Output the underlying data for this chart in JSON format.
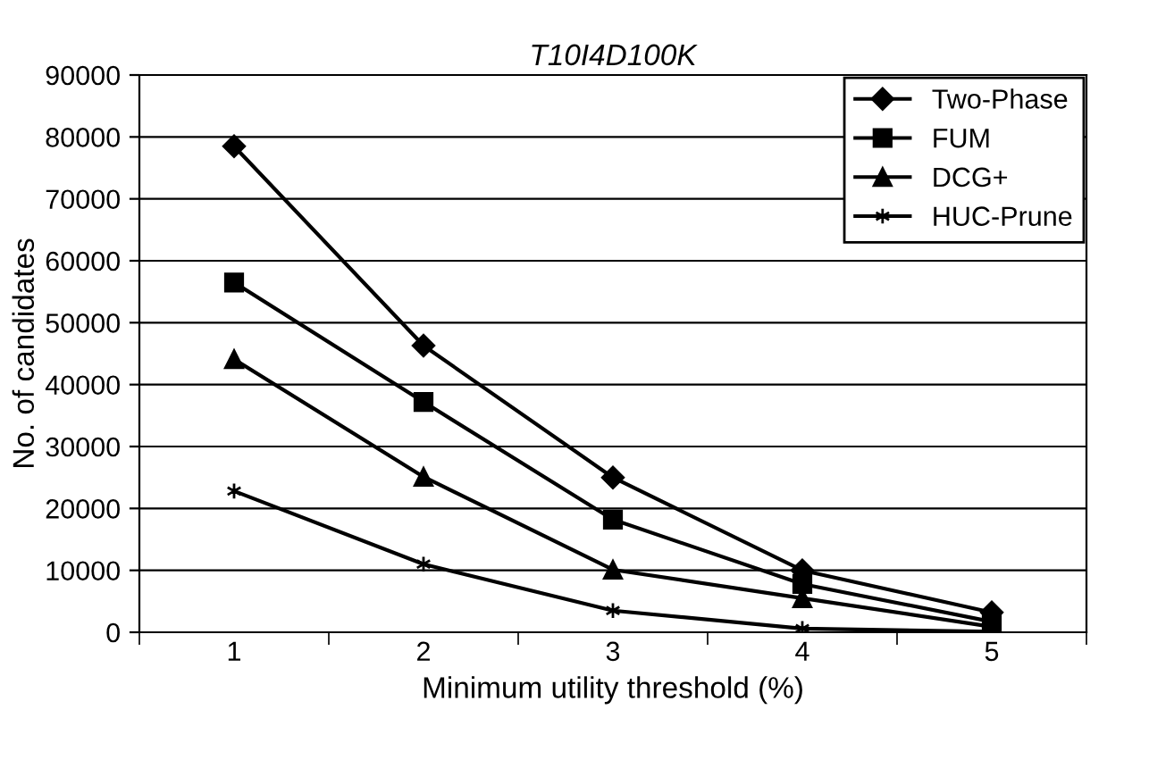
{
  "chart_data": {
    "type": "line",
    "title": "T10I4D100K",
    "xlabel": "Minimum utility threshold (%)",
    "ylabel": "No. of candidates",
    "categories": [
      "1",
      "2",
      "3",
      "4",
      "5"
    ],
    "series": [
      {
        "name": "Two-Phase",
        "color": "#000000",
        "marker": "diamond",
        "values": [
          78500,
          46300,
          25000,
          10000,
          3200
        ]
      },
      {
        "name": "FUM",
        "color": "#000000",
        "marker": "square",
        "values": [
          56500,
          37200,
          18200,
          7800,
          1700
        ]
      },
      {
        "name": "DCG+",
        "color": "#000000",
        "marker": "triangle",
        "values": [
          44100,
          25100,
          10100,
          5500,
          900
        ]
      },
      {
        "name": "HUC-Prune",
        "color": "#000000",
        "marker": "cross",
        "values": [
          22800,
          11000,
          3500,
          600,
          100
        ]
      }
    ],
    "ylim": [
      0,
      90000
    ],
    "yticks": [
      0,
      10000,
      20000,
      30000,
      40000,
      50000,
      60000,
      70000,
      80000,
      90000
    ],
    "grid": "y",
    "legend": "top right",
    "line_style": "solid"
  }
}
